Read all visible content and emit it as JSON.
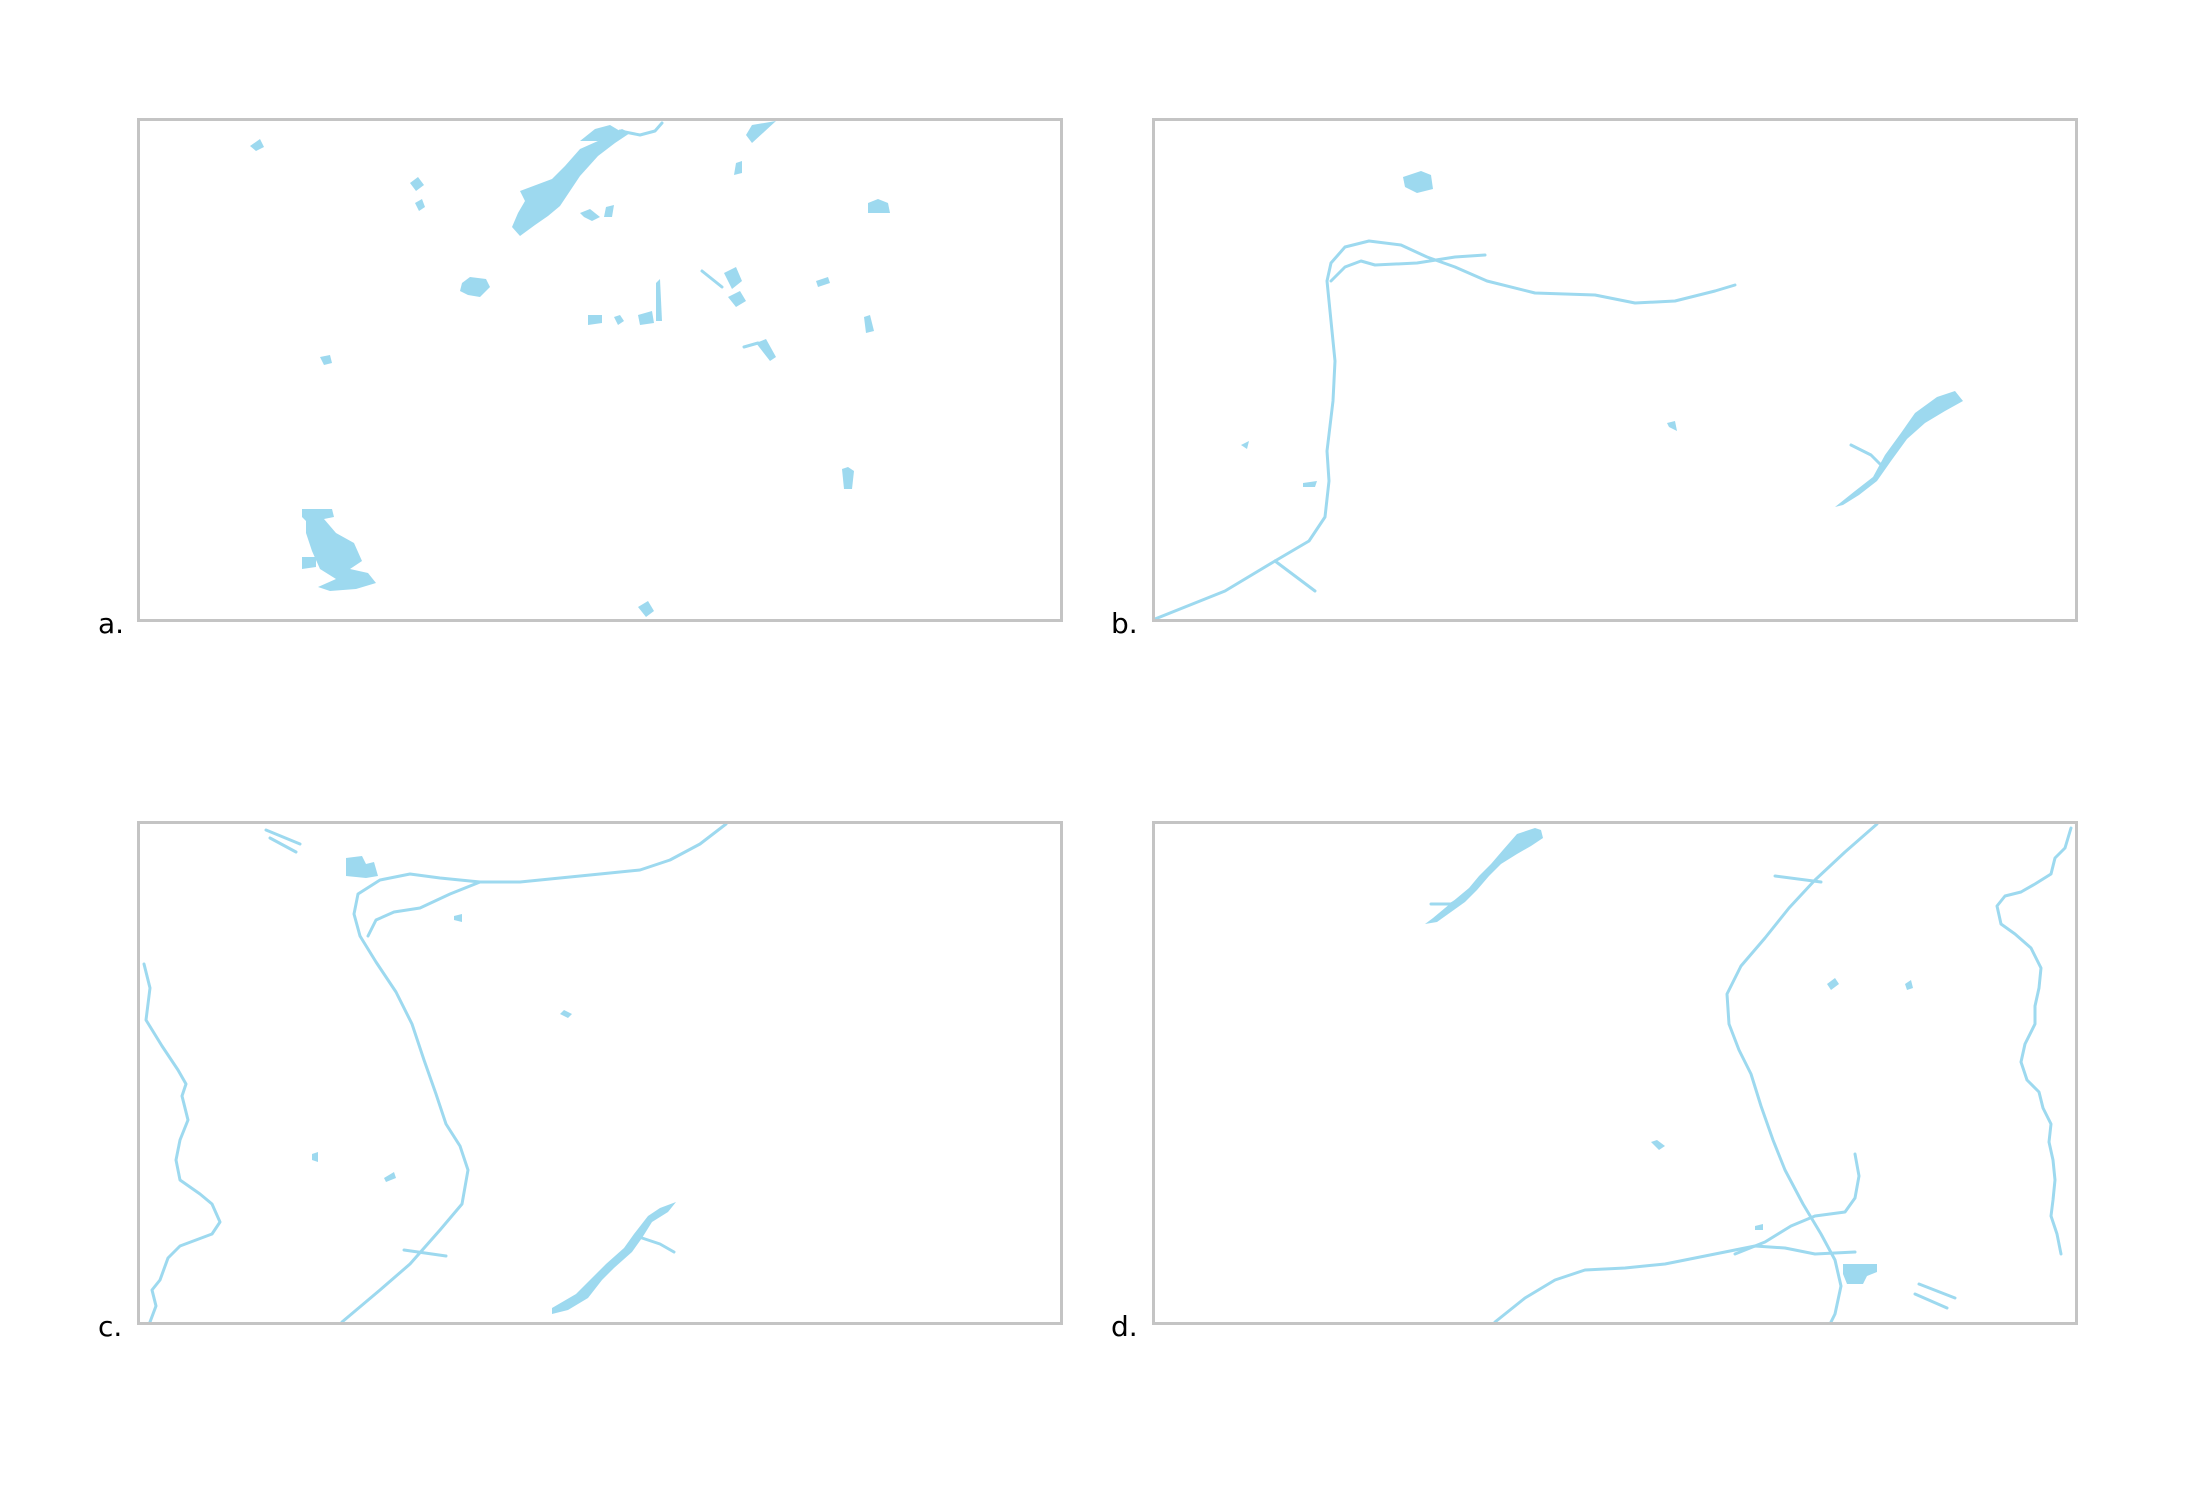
{
  "panels": [
    {
      "id": "a",
      "label": "a."
    },
    {
      "id": "b",
      "label": "b."
    },
    {
      "id": "c",
      "label": "c."
    },
    {
      "id": "d",
      "label": "d."
    }
  ],
  "colors": {
    "water": "#9dd9ef",
    "frame": "#c4c4c4",
    "background": "#ffffff",
    "label": "#000000"
  }
}
